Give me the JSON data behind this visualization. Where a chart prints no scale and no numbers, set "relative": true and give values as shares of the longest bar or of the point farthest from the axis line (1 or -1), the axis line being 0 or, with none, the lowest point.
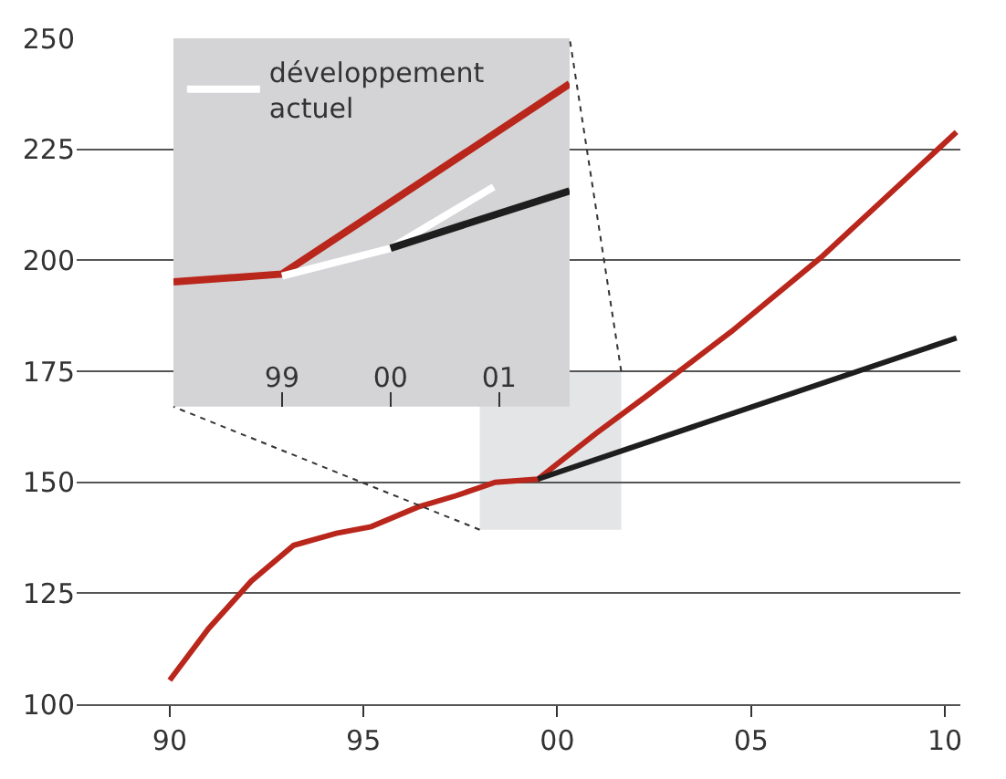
{
  "chart_data": [
    {
      "type": "line",
      "xlim": [
        1987.6,
        2010.4
      ],
      "ylim": [
        100,
        250
      ],
      "yticks": [
        100,
        125,
        150,
        175,
        200,
        225,
        250
      ],
      "xticks": [
        {
          "value": 1990,
          "label": "90"
        },
        {
          "value": 1995,
          "label": "95"
        },
        {
          "value": 2000,
          "label": "00"
        },
        {
          "value": 2005,
          "label": "05"
        },
        {
          "value": 2010,
          "label": "10"
        }
      ],
      "grid": "y",
      "series": [
        {
          "color": "#b9261b",
          "x": [
            1990.0,
            1991.0,
            1992.1,
            1993.2,
            1994.3,
            1995.2,
            1996.4,
            1997.4,
            1998.4,
            1999.5,
            2001,
            2002.3,
            2004.5,
            2006.8,
            2010.3
          ],
          "values": [
            105.4,
            117,
            127.7,
            135.8,
            138.5,
            140,
            144.4,
            147,
            150,
            150.7,
            161,
            169.4,
            184,
            200.6,
            228.9
          ]
        },
        {
          "color": "#1e1e1e",
          "x": [
            1999.5,
            2010.3
          ],
          "values": [
            150.7,
            182.5
          ]
        }
      ]
    },
    {
      "type": "line",
      "relative": true,
      "xlim": [
        1998,
        2001.65
      ],
      "xticks": [
        {
          "value": 1999,
          "label": "99"
        },
        {
          "value": 2000,
          "label": "00"
        },
        {
          "value": 2001,
          "label": "01"
        }
      ],
      "tick_labels": "x",
      "legend": "top left",
      "series": [
        {
          "color": "#b9261b",
          "x": [
            1998,
            1999,
            2001.65
          ],
          "values": [
            0,
            0.04,
            1
          ]
        },
        {
          "name": "développement actuel",
          "color": "#ffffff",
          "x": [
            1999,
            2000,
            2000.95
          ],
          "values": [
            0.03,
            0.17,
            0.48
          ]
        },
        {
          "color": "#1e1e1e",
          "x": [
            2000,
            2001.65
          ],
          "values": [
            0.17,
            0.46
          ]
        }
      ]
    }
  ]
}
